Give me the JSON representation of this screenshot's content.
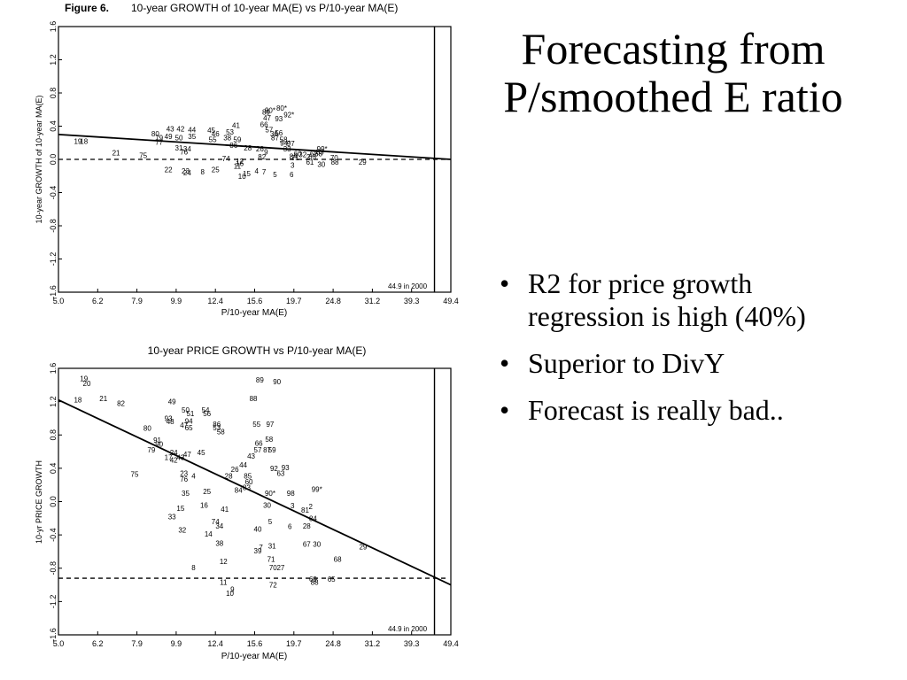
{
  "slide": {
    "title": "Forecasting from P/smoothed E ratio",
    "bullets": [
      "R2 for price growth regression is high (40%)",
      "Superior to DivY",
      "Forecast is really bad.."
    ],
    "bullet_symbol": "•"
  },
  "chart_data": [
    {
      "type": "scatter",
      "figure_label": "Figure 6.",
      "title": "10-year GROWTH of 10-year MA(E) vs P/10-year MA(E)",
      "xlabel": "P/10-year MA(E)",
      "ylabel": "10-year GROWTH of 10-year MA(E)",
      "x_scale": "log",
      "xlim": [
        5.0,
        49.4
      ],
      "ylim": [
        -1.6,
        1.6
      ],
      "x_ticks": [
        "5.0",
        "6.2",
        "7.9",
        "9.9",
        "12.4",
        "15.6",
        "19.7",
        "24.8",
        "31.2",
        "39.3",
        "49.4"
      ],
      "y_ticks": [
        "1.6",
        "1.2",
        "0.8",
        "0.4",
        "0.0",
        "-0.4",
        "-0.8",
        "-1.2",
        "-1.6"
      ],
      "annotation": "44.9 in 2000",
      "vline_x": 44.9,
      "hline_y": 0.0,
      "regression": {
        "x1": 5.0,
        "y1": 0.3,
        "x2": 49.4,
        "y2": 0.0
      },
      "points": [
        {
          "l": "19",
          "x": 5.6,
          "y": 0.22
        },
        {
          "l": "18",
          "x": 5.8,
          "y": 0.22
        },
        {
          "l": "21",
          "x": 7.0,
          "y": 0.08
        },
        {
          "l": "75",
          "x": 8.2,
          "y": 0.05
        },
        {
          "l": "80",
          "x": 8.8,
          "y": 0.31
        },
        {
          "l": "79",
          "x": 9.0,
          "y": 0.26
        },
        {
          "l": "43",
          "x": 9.6,
          "y": 0.37
        },
        {
          "l": "49",
          "x": 9.5,
          "y": 0.28
        },
        {
          "l": "77",
          "x": 9.0,
          "y": 0.21
        },
        {
          "l": "22",
          "x": 9.5,
          "y": -0.12
        },
        {
          "l": "42",
          "x": 10.2,
          "y": 0.37
        },
        {
          "l": "50",
          "x": 10.1,
          "y": 0.26
        },
        {
          "l": "31",
          "x": 10.1,
          "y": 0.14
        },
        {
          "l": "76",
          "x": 10.4,
          "y": 0.09
        },
        {
          "l": "24",
          "x": 10.6,
          "y": -0.16
        },
        {
          "l": "23",
          "x": 10.5,
          "y": -0.14
        },
        {
          "l": "44",
          "x": 10.9,
          "y": 0.36
        },
        {
          "l": "35",
          "x": 10.9,
          "y": 0.28
        },
        {
          "l": "34",
          "x": 10.6,
          "y": 0.13
        },
        {
          "l": "8",
          "x": 11.6,
          "y": -0.15
        },
        {
          "l": "45",
          "x": 12.2,
          "y": 0.35
        },
        {
          "l": "46",
          "x": 12.5,
          "y": 0.31
        },
        {
          "l": "55",
          "x": 12.3,
          "y": 0.24
        },
        {
          "l": "38",
          "x": 13.4,
          "y": 0.26
        },
        {
          "l": "53",
          "x": 13.6,
          "y": 0.33
        },
        {
          "l": "41",
          "x": 14.1,
          "y": 0.41
        },
        {
          "l": "59",
          "x": 14.2,
          "y": 0.24
        },
        {
          "l": "25",
          "x": 12.5,
          "y": -0.12
        },
        {
          "l": "74",
          "x": 13.3,
          "y": 0.01
        },
        {
          "l": "86",
          "x": 13.9,
          "y": 0.17
        },
        {
          "l": "11",
          "x": 14.2,
          "y": -0.08
        },
        {
          "l": "16",
          "x": 14.4,
          "y": -0.05
        },
        {
          "l": "12",
          "x": 14.4,
          "y": -0.02
        },
        {
          "l": "10",
          "x": 14.6,
          "y": -0.2
        },
        {
          "l": "15",
          "x": 15.0,
          "y": -0.17
        },
        {
          "l": "4",
          "x": 15.9,
          "y": -0.14
        },
        {
          "l": "7",
          "x": 16.6,
          "y": -0.15
        },
        {
          "l": "28",
          "x": 15.1,
          "y": 0.14
        },
        {
          "l": "26",
          "x": 16.2,
          "y": 0.13
        },
        {
          "l": "82",
          "x": 16.4,
          "y": 0.03
        },
        {
          "l": "9",
          "x": 16.8,
          "y": 0.09
        },
        {
          "l": "5",
          "x": 17.7,
          "y": -0.18
        },
        {
          "l": "6",
          "x": 19.5,
          "y": -0.18
        },
        {
          "l": "3",
          "x": 19.6,
          "y": -0.07
        },
        {
          "l": "90*",
          "x": 17.2,
          "y": 0.59
        },
        {
          "l": "89",
          "x": 16.8,
          "y": 0.57
        },
        {
          "l": "93",
          "x": 18.1,
          "y": 0.49
        },
        {
          "l": "92*",
          "x": 19.2,
          "y": 0.54
        },
        {
          "l": "80*",
          "x": 18.4,
          "y": 0.62
        },
        {
          "l": "66",
          "x": 16.6,
          "y": 0.42
        },
        {
          "l": "57",
          "x": 17.1,
          "y": 0.36
        },
        {
          "l": "56",
          "x": 18.1,
          "y": 0.32
        },
        {
          "l": "36",
          "x": 17.6,
          "y": 0.31
        },
        {
          "l": "58",
          "x": 18.6,
          "y": 0.24
        },
        {
          "l": "87",
          "x": 17.7,
          "y": 0.26
        },
        {
          "l": "47",
          "x": 16.9,
          "y": 0.5
        },
        {
          "l": "94*",
          "x": 18.8,
          "y": 0.2
        },
        {
          "l": "97",
          "x": 19.4,
          "y": 0.19
        },
        {
          "l": "84",
          "x": 19.7,
          "y": 0.04
        },
        {
          "l": "60",
          "x": 20.2,
          "y": 0.07
        },
        {
          "l": "32",
          "x": 20.8,
          "y": 0.06
        },
        {
          "l": "2",
          "x": 21.5,
          "y": 0.03
        },
        {
          "l": "62",
          "x": 22.2,
          "y": 0.07
        },
        {
          "l": "68",
          "x": 22.8,
          "y": 0.07
        },
        {
          "l": "99*",
          "x": 23.3,
          "y": 0.13
        },
        {
          "l": "83",
          "x": 23.0,
          "y": 0.09
        },
        {
          "l": "61",
          "x": 21.7,
          "y": -0.03
        },
        {
          "l": "65",
          "x": 22.0,
          "y": 0.03
        },
        {
          "l": "30",
          "x": 23.2,
          "y": -0.06
        },
        {
          "l": "70",
          "x": 25.0,
          "y": 0.02
        },
        {
          "l": "88",
          "x": 25.1,
          "y": -0.03
        },
        {
          "l": "29",
          "x": 29.5,
          "y": -0.03
        },
        {
          "l": "33",
          "x": 19.0,
          "y": 0.13
        },
        {
          "l": "71",
          "x": 19.9,
          "y": 0.02
        }
      ]
    },
    {
      "type": "scatter",
      "title": "10-year PRICE GROWTH vs P/10-year MA(E)",
      "xlabel": "P/10-year MA(E)",
      "ylabel": "10-yr PRICE GROWTH",
      "x_scale": "log",
      "xlim": [
        5.0,
        49.4
      ],
      "ylim": [
        -1.6,
        1.6
      ],
      "x_ticks": [
        "5.0",
        "6.2",
        "7.9",
        "9.9",
        "12.4",
        "15.6",
        "19.7",
        "24.8",
        "31.2",
        "39.3",
        "49.4"
      ],
      "y_ticks": [
        "1.6",
        "1.2",
        "0.8",
        "0.4",
        "0.0",
        "-0.4",
        "-0.8",
        "-1.2",
        "-1.6"
      ],
      "annotation": "44.9 in 2000",
      "vline_x": 44.9,
      "hline_y": -0.92,
      "regression": {
        "x1": 5.0,
        "y1": 1.22,
        "x2": 49.4,
        "y2": -1.0
      },
      "points": [
        {
          "l": "19",
          "x": 5.8,
          "y": 1.48
        },
        {
          "l": "20",
          "x": 5.9,
          "y": 1.42
        },
        {
          "l": "18",
          "x": 5.6,
          "y": 1.22
        },
        {
          "l": "21",
          "x": 6.5,
          "y": 1.24
        },
        {
          "l": "82",
          "x": 7.2,
          "y": 1.18
        },
        {
          "l": "49",
          "x": 9.7,
          "y": 1.2
        },
        {
          "l": "50",
          "x": 10.5,
          "y": 1.1
        },
        {
          "l": "51",
          "x": 10.8,
          "y": 1.06
        },
        {
          "l": "54",
          "x": 11.8,
          "y": 1.1
        },
        {
          "l": "56",
          "x": 11.9,
          "y": 1.06
        },
        {
          "l": "93",
          "x": 9.5,
          "y": 1.0
        },
        {
          "l": "94",
          "x": 10.7,
          "y": 0.97
        },
        {
          "l": "48",
          "x": 9.6,
          "y": 0.96
        },
        {
          "l": "47",
          "x": 10.4,
          "y": 0.92
        },
        {
          "l": "65",
          "x": 10.7,
          "y": 0.89
        },
        {
          "l": "80",
          "x": 8.4,
          "y": 0.88
        },
        {
          "l": "86",
          "x": 12.6,
          "y": 0.93
        },
        {
          "l": "53",
          "x": 12.6,
          "y": 0.89
        },
        {
          "l": "58",
          "x": 12.9,
          "y": 0.84
        },
        {
          "l": "91",
          "x": 8.9,
          "y": 0.74
        },
        {
          "l": "90",
          "x": 9.0,
          "y": 0.69
        },
        {
          "l": "79",
          "x": 8.6,
          "y": 0.62
        },
        {
          "l": "24",
          "x": 9.8,
          "y": 0.59
        },
        {
          "l": "17",
          "x": 9.5,
          "y": 0.53
        },
        {
          "l": "42",
          "x": 9.8,
          "y": 0.5
        },
        {
          "l": "43",
          "x": 10.2,
          "y": 0.53
        },
        {
          "l": "47",
          "x": 10.6,
          "y": 0.57
        },
        {
          "l": "45",
          "x": 11.5,
          "y": 0.59
        },
        {
          "l": "75",
          "x": 7.8,
          "y": 0.33
        },
        {
          "l": "23",
          "x": 10.4,
          "y": 0.34
        },
        {
          "l": "4",
          "x": 11.0,
          "y": 0.31
        },
        {
          "l": "76",
          "x": 10.4,
          "y": 0.27
        },
        {
          "l": "35",
          "x": 10.5,
          "y": 0.1
        },
        {
          "l": "25",
          "x": 11.9,
          "y": 0.12
        },
        {
          "l": "16",
          "x": 11.7,
          "y": -0.04
        },
        {
          "l": "15",
          "x": 10.2,
          "y": -0.08
        },
        {
          "l": "33",
          "x": 9.7,
          "y": -0.18
        },
        {
          "l": "32",
          "x": 10.3,
          "y": -0.34
        },
        {
          "l": "74",
          "x": 12.5,
          "y": -0.24
        },
        {
          "l": "34",
          "x": 12.8,
          "y": -0.29
        },
        {
          "l": "41",
          "x": 13.2,
          "y": -0.09
        },
        {
          "l": "14",
          "x": 12.0,
          "y": -0.39
        },
        {
          "l": "38",
          "x": 12.8,
          "y": -0.5
        },
        {
          "l": "12",
          "x": 13.1,
          "y": -0.72
        },
        {
          "l": "8",
          "x": 11.0,
          "y": -0.79
        },
        {
          "l": "11",
          "x": 13.1,
          "y": -0.97
        },
        {
          "l": "9",
          "x": 13.8,
          "y": -1.05
        },
        {
          "l": "10",
          "x": 13.6,
          "y": -1.1
        },
        {
          "l": "26",
          "x": 14.0,
          "y": 0.39
        },
        {
          "l": "28",
          "x": 13.5,
          "y": 0.31
        },
        {
          "l": "84",
          "x": 14.3,
          "y": 0.14
        },
        {
          "l": "83",
          "x": 15.0,
          "y": 0.17
        },
        {
          "l": "60",
          "x": 15.2,
          "y": 0.24
        },
        {
          "l": "85",
          "x": 15.1,
          "y": 0.31
        },
        {
          "l": "44",
          "x": 14.7,
          "y": 0.44
        },
        {
          "l": "43",
          "x": 15.4,
          "y": 0.55
        },
        {
          "l": "57",
          "x": 16.0,
          "y": 0.62
        },
        {
          "l": "66",
          "x": 16.1,
          "y": 0.7
        },
        {
          "l": "58",
          "x": 17.1,
          "y": 0.75
        },
        {
          "l": "59",
          "x": 17.4,
          "y": 0.62
        },
        {
          "l": "87",
          "x": 16.9,
          "y": 0.62
        },
        {
          "l": "55",
          "x": 15.9,
          "y": 0.93
        },
        {
          "l": "97",
          "x": 17.2,
          "y": 0.93
        },
        {
          "l": "89",
          "x": 16.2,
          "y": 1.46
        },
        {
          "l": "90",
          "x": 17.9,
          "y": 1.44
        },
        {
          "l": "88",
          "x": 15.6,
          "y": 1.24
        },
        {
          "l": "92",
          "x": 17.6,
          "y": 0.4
        },
        {
          "l": "93",
          "x": 18.8,
          "y": 0.41
        },
        {
          "l": "63",
          "x": 18.3,
          "y": 0.34
        },
        {
          "l": "90*",
          "x": 17.2,
          "y": 0.1
        },
        {
          "l": "98",
          "x": 19.4,
          "y": 0.1
        },
        {
          "l": "99*",
          "x": 22.6,
          "y": 0.15
        },
        {
          "l": "3",
          "x": 19.6,
          "y": -0.05
        },
        {
          "l": "81",
          "x": 21.1,
          "y": -0.1
        },
        {
          "l": "2",
          "x": 21.8,
          "y": -0.06
        },
        {
          "l": "30",
          "x": 16.9,
          "y": -0.04
        },
        {
          "l": "5",
          "x": 17.2,
          "y": -0.24
        },
        {
          "l": "6",
          "x": 19.3,
          "y": -0.3
        },
        {
          "l": "40",
          "x": 16.0,
          "y": -0.33
        },
        {
          "l": "84",
          "x": 22.1,
          "y": -0.2
        },
        {
          "l": "28",
          "x": 21.3,
          "y": -0.29
        },
        {
          "l": "67",
          "x": 21.3,
          "y": -0.51
        },
        {
          "l": "30",
          "x": 22.6,
          "y": -0.51
        },
        {
          "l": "29",
          "x": 29.6,
          "y": -0.54
        },
        {
          "l": "31",
          "x": 17.4,
          "y": -0.53
        },
        {
          "l": "39",
          "x": 16.0,
          "y": -0.59
        },
        {
          "l": "7",
          "x": 16.3,
          "y": -0.55
        },
        {
          "l": "70",
          "x": 17.5,
          "y": -0.79
        },
        {
          "l": "27",
          "x": 18.3,
          "y": -0.79
        },
        {
          "l": "71",
          "x": 17.3,
          "y": -0.69
        },
        {
          "l": "72",
          "x": 17.5,
          "y": -1.0
        },
        {
          "l": "68",
          "x": 25.5,
          "y": -0.69
        },
        {
          "l": "69",
          "x": 22.1,
          "y": -0.93
        },
        {
          "l": "65",
          "x": 24.6,
          "y": -0.93
        },
        {
          "l": "88",
          "x": 22.3,
          "y": -0.97
        }
      ]
    }
  ]
}
